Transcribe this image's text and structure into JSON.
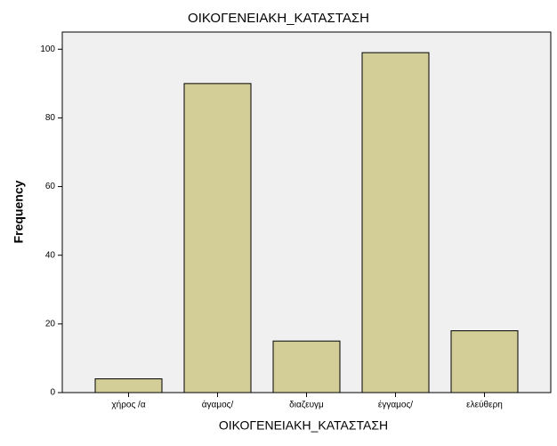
{
  "chart_data": {
    "type": "bar",
    "title": "ΟΙΚΟΓΕΝΕΙΑΚΗ_ΚΑΤΑΣΤΑΣΗ",
    "x_label": "ΟΙΚΟΓΕΝΕΙΑΚΗ_ΚΑΤΑΣΤΑΣΗ",
    "y_label": "Frequency",
    "categories": [
      "χήρος /α",
      "άγαμος/",
      "διαζευγμ",
      "έγγαμος/",
      "ελεύθερη"
    ],
    "values": [
      4,
      90,
      15,
      99,
      18
    ],
    "color": "#d3ce97",
    "ylim": [
      0,
      105
    ],
    "yticks": [
      0,
      20,
      40,
      60,
      80,
      100
    ],
    "grid": false
  }
}
